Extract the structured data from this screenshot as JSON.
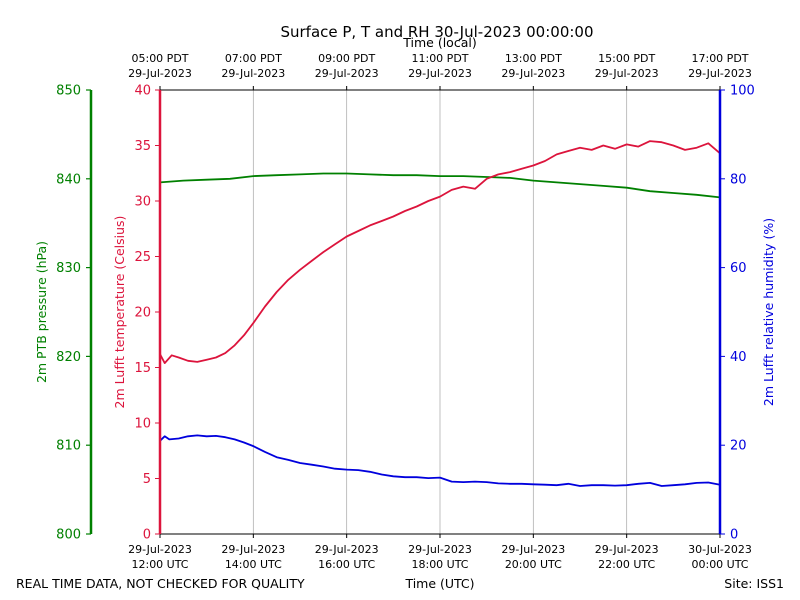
{
  "chart_data": {
    "type": "line",
    "title": "Surface P, T and RH 30-Jul-2023 00:00:00",
    "top_axis": {
      "label": "Time (local)",
      "ticks": [
        {
          "hours": 0,
          "line1": "05:00 PDT",
          "line2": "29-Jul-2023"
        },
        {
          "hours": 2,
          "line1": "07:00 PDT",
          "line2": "29-Jul-2023"
        },
        {
          "hours": 4,
          "line1": "09:00 PDT",
          "line2": "29-Jul-2023"
        },
        {
          "hours": 6,
          "line1": "11:00 PDT",
          "line2": "29-Jul-2023"
        },
        {
          "hours": 8,
          "line1": "13:00 PDT",
          "line2": "29-Jul-2023"
        },
        {
          "hours": 10,
          "line1": "15:00 PDT",
          "line2": "29-Jul-2023"
        },
        {
          "hours": 12,
          "line1": "17:00 PDT",
          "line2": "29-Jul-2023"
        }
      ]
    },
    "bottom_axis": {
      "label": "Time (UTC)",
      "ticks": [
        {
          "hours": 0,
          "line1": "29-Jul-2023",
          "line2": "12:00 UTC"
        },
        {
          "hours": 2,
          "line1": "29-Jul-2023",
          "line2": "14:00 UTC"
        },
        {
          "hours": 4,
          "line1": "29-Jul-2023",
          "line2": "16:00 UTC"
        },
        {
          "hours": 6,
          "line1": "29-Jul-2023",
          "line2": "18:00 UTC"
        },
        {
          "hours": 8,
          "line1": "29-Jul-2023",
          "line2": "20:00 UTC"
        },
        {
          "hours": 10,
          "line1": "29-Jul-2023",
          "line2": "22:00 UTC"
        },
        {
          "hours": 12,
          "line1": "30-Jul-2023",
          "line2": "00:00 UTC"
        }
      ]
    },
    "xlim": [
      0,
      12
    ],
    "x_units": "hours since 29-Jul-2023 12:00 UTC",
    "grid": "vertical",
    "axes": {
      "pressure": {
        "label": "2m PTB pressure (hPa)",
        "color": "#008000",
        "ylim": [
          800,
          850
        ],
        "ticks": [
          800,
          810,
          820,
          830,
          840,
          850
        ]
      },
      "temperature": {
        "label": "2m Lufft temperature (Celsius)",
        "color": "#dc143c",
        "ylim": [
          0,
          40
        ],
        "ticks": [
          0,
          5,
          10,
          15,
          20,
          25,
          30,
          35,
          40
        ]
      },
      "humidity": {
        "label": "2m Lufft relative humidity (%)",
        "color": "#0000dd",
        "ylim": [
          0,
          100
        ],
        "ticks": [
          0,
          20,
          40,
          60,
          80,
          100
        ]
      }
    },
    "series": [
      {
        "name": "2m PTB pressure (hPa)",
        "axis": "pressure",
        "color": "#008000",
        "x": [
          0,
          0.5,
          1,
          1.5,
          2,
          2.5,
          3,
          3.5,
          4,
          4.5,
          5,
          5.5,
          6,
          6.5,
          7,
          7.5,
          8,
          8.5,
          9,
          9.5,
          10,
          10.5,
          11,
          11.5,
          12
        ],
        "values": [
          839.6,
          839.8,
          839.9,
          840.0,
          840.3,
          840.4,
          840.5,
          840.6,
          840.6,
          840.5,
          840.4,
          840.4,
          840.3,
          840.3,
          840.2,
          840.1,
          839.8,
          839.6,
          839.4,
          839.2,
          839.0,
          838.6,
          838.4,
          838.2,
          837.9
        ]
      },
      {
        "name": "2m Lufft temperature (Celsius)",
        "axis": "temperature",
        "color": "#dc143c",
        "x": [
          0,
          0.1,
          0.25,
          0.4,
          0.6,
          0.8,
          1.0,
          1.2,
          1.4,
          1.6,
          1.8,
          2.0,
          2.25,
          2.5,
          2.75,
          3.0,
          3.25,
          3.5,
          3.75,
          4.0,
          4.25,
          4.5,
          4.75,
          5.0,
          5.25,
          5.5,
          5.75,
          6.0,
          6.25,
          6.5,
          6.75,
          7.0,
          7.25,
          7.5,
          7.75,
          8.0,
          8.25,
          8.5,
          8.75,
          9.0,
          9.25,
          9.5,
          9.75,
          10.0,
          10.25,
          10.5,
          10.75,
          11.0,
          11.25,
          11.5,
          11.75,
          12.0
        ],
        "values": [
          16.2,
          15.4,
          16.1,
          15.9,
          15.6,
          15.5,
          15.7,
          15.9,
          16.3,
          17.0,
          17.9,
          19.0,
          20.5,
          21.8,
          22.9,
          23.8,
          24.6,
          25.4,
          26.1,
          26.8,
          27.3,
          27.8,
          28.2,
          28.6,
          29.1,
          29.5,
          30.0,
          30.4,
          31.0,
          31.3,
          31.1,
          32.0,
          32.4,
          32.6,
          32.9,
          33.2,
          33.6,
          34.2,
          34.5,
          34.8,
          34.6,
          35.0,
          34.7,
          35.1,
          34.9,
          35.4,
          35.3,
          35.0,
          34.6,
          34.8,
          35.2,
          34.3
        ]
      },
      {
        "name": "2m Lufft relative humidity (%)",
        "axis": "humidity",
        "color": "#0000dd",
        "x": [
          0,
          0.1,
          0.2,
          0.4,
          0.6,
          0.8,
          1.0,
          1.2,
          1.4,
          1.6,
          1.8,
          2.0,
          2.25,
          2.5,
          2.75,
          3.0,
          3.25,
          3.5,
          3.75,
          4.0,
          4.25,
          4.5,
          4.75,
          5.0,
          5.25,
          5.5,
          5.75,
          6.0,
          6.25,
          6.5,
          6.75,
          7.0,
          7.25,
          7.5,
          7.75,
          8.0,
          8.25,
          8.5,
          8.75,
          9.0,
          9.25,
          9.5,
          9.75,
          10.0,
          10.25,
          10.5,
          10.75,
          11.0,
          11.25,
          11.5,
          11.75,
          12.0
        ],
        "values": [
          21.0,
          22.0,
          21.3,
          21.5,
          22.0,
          22.2,
          22.0,
          22.1,
          21.8,
          21.3,
          20.6,
          19.8,
          18.5,
          17.3,
          16.7,
          16.0,
          15.6,
          15.2,
          14.7,
          14.5,
          14.4,
          14.0,
          13.4,
          13.0,
          12.8,
          12.8,
          12.6,
          12.7,
          11.8,
          11.7,
          11.8,
          11.7,
          11.4,
          11.3,
          11.3,
          11.2,
          11.1,
          11.0,
          11.3,
          10.8,
          11.0,
          11.0,
          10.9,
          11.0,
          11.3,
          11.5,
          10.8,
          11.0,
          11.2,
          11.5,
          11.6,
          11.1
        ]
      }
    ]
  },
  "footer": {
    "left_note": "REAL TIME DATA, NOT CHECKED FOR QUALITY",
    "site": "Site: ISS1"
  }
}
